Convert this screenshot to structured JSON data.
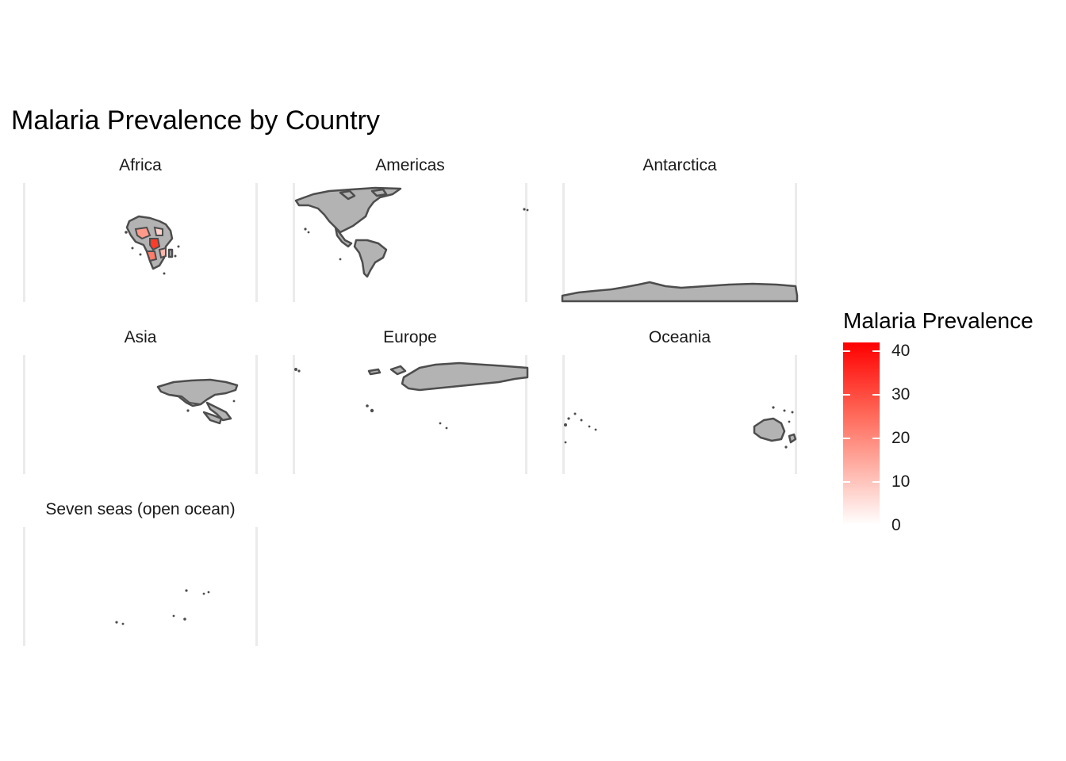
{
  "title": "Malaria Prevalence by Country",
  "facets": [
    {
      "label": "Africa"
    },
    {
      "label": "Americas"
    },
    {
      "label": "Antarctica"
    },
    {
      "label": "Asia"
    },
    {
      "label": "Europe"
    },
    {
      "label": "Oceania"
    },
    {
      "label": "Seven seas (open ocean)"
    }
  ],
  "legend": {
    "title": "Malaria Prevalence",
    "ticks": [
      "40",
      "30",
      "20",
      "10",
      "0"
    ],
    "low_color": "#ffffff",
    "high_color": "#ff0000"
  },
  "colors": {
    "land": "#b3b3b3",
    "border": "#4d4d4d",
    "grid": "#ebebeb"
  }
}
